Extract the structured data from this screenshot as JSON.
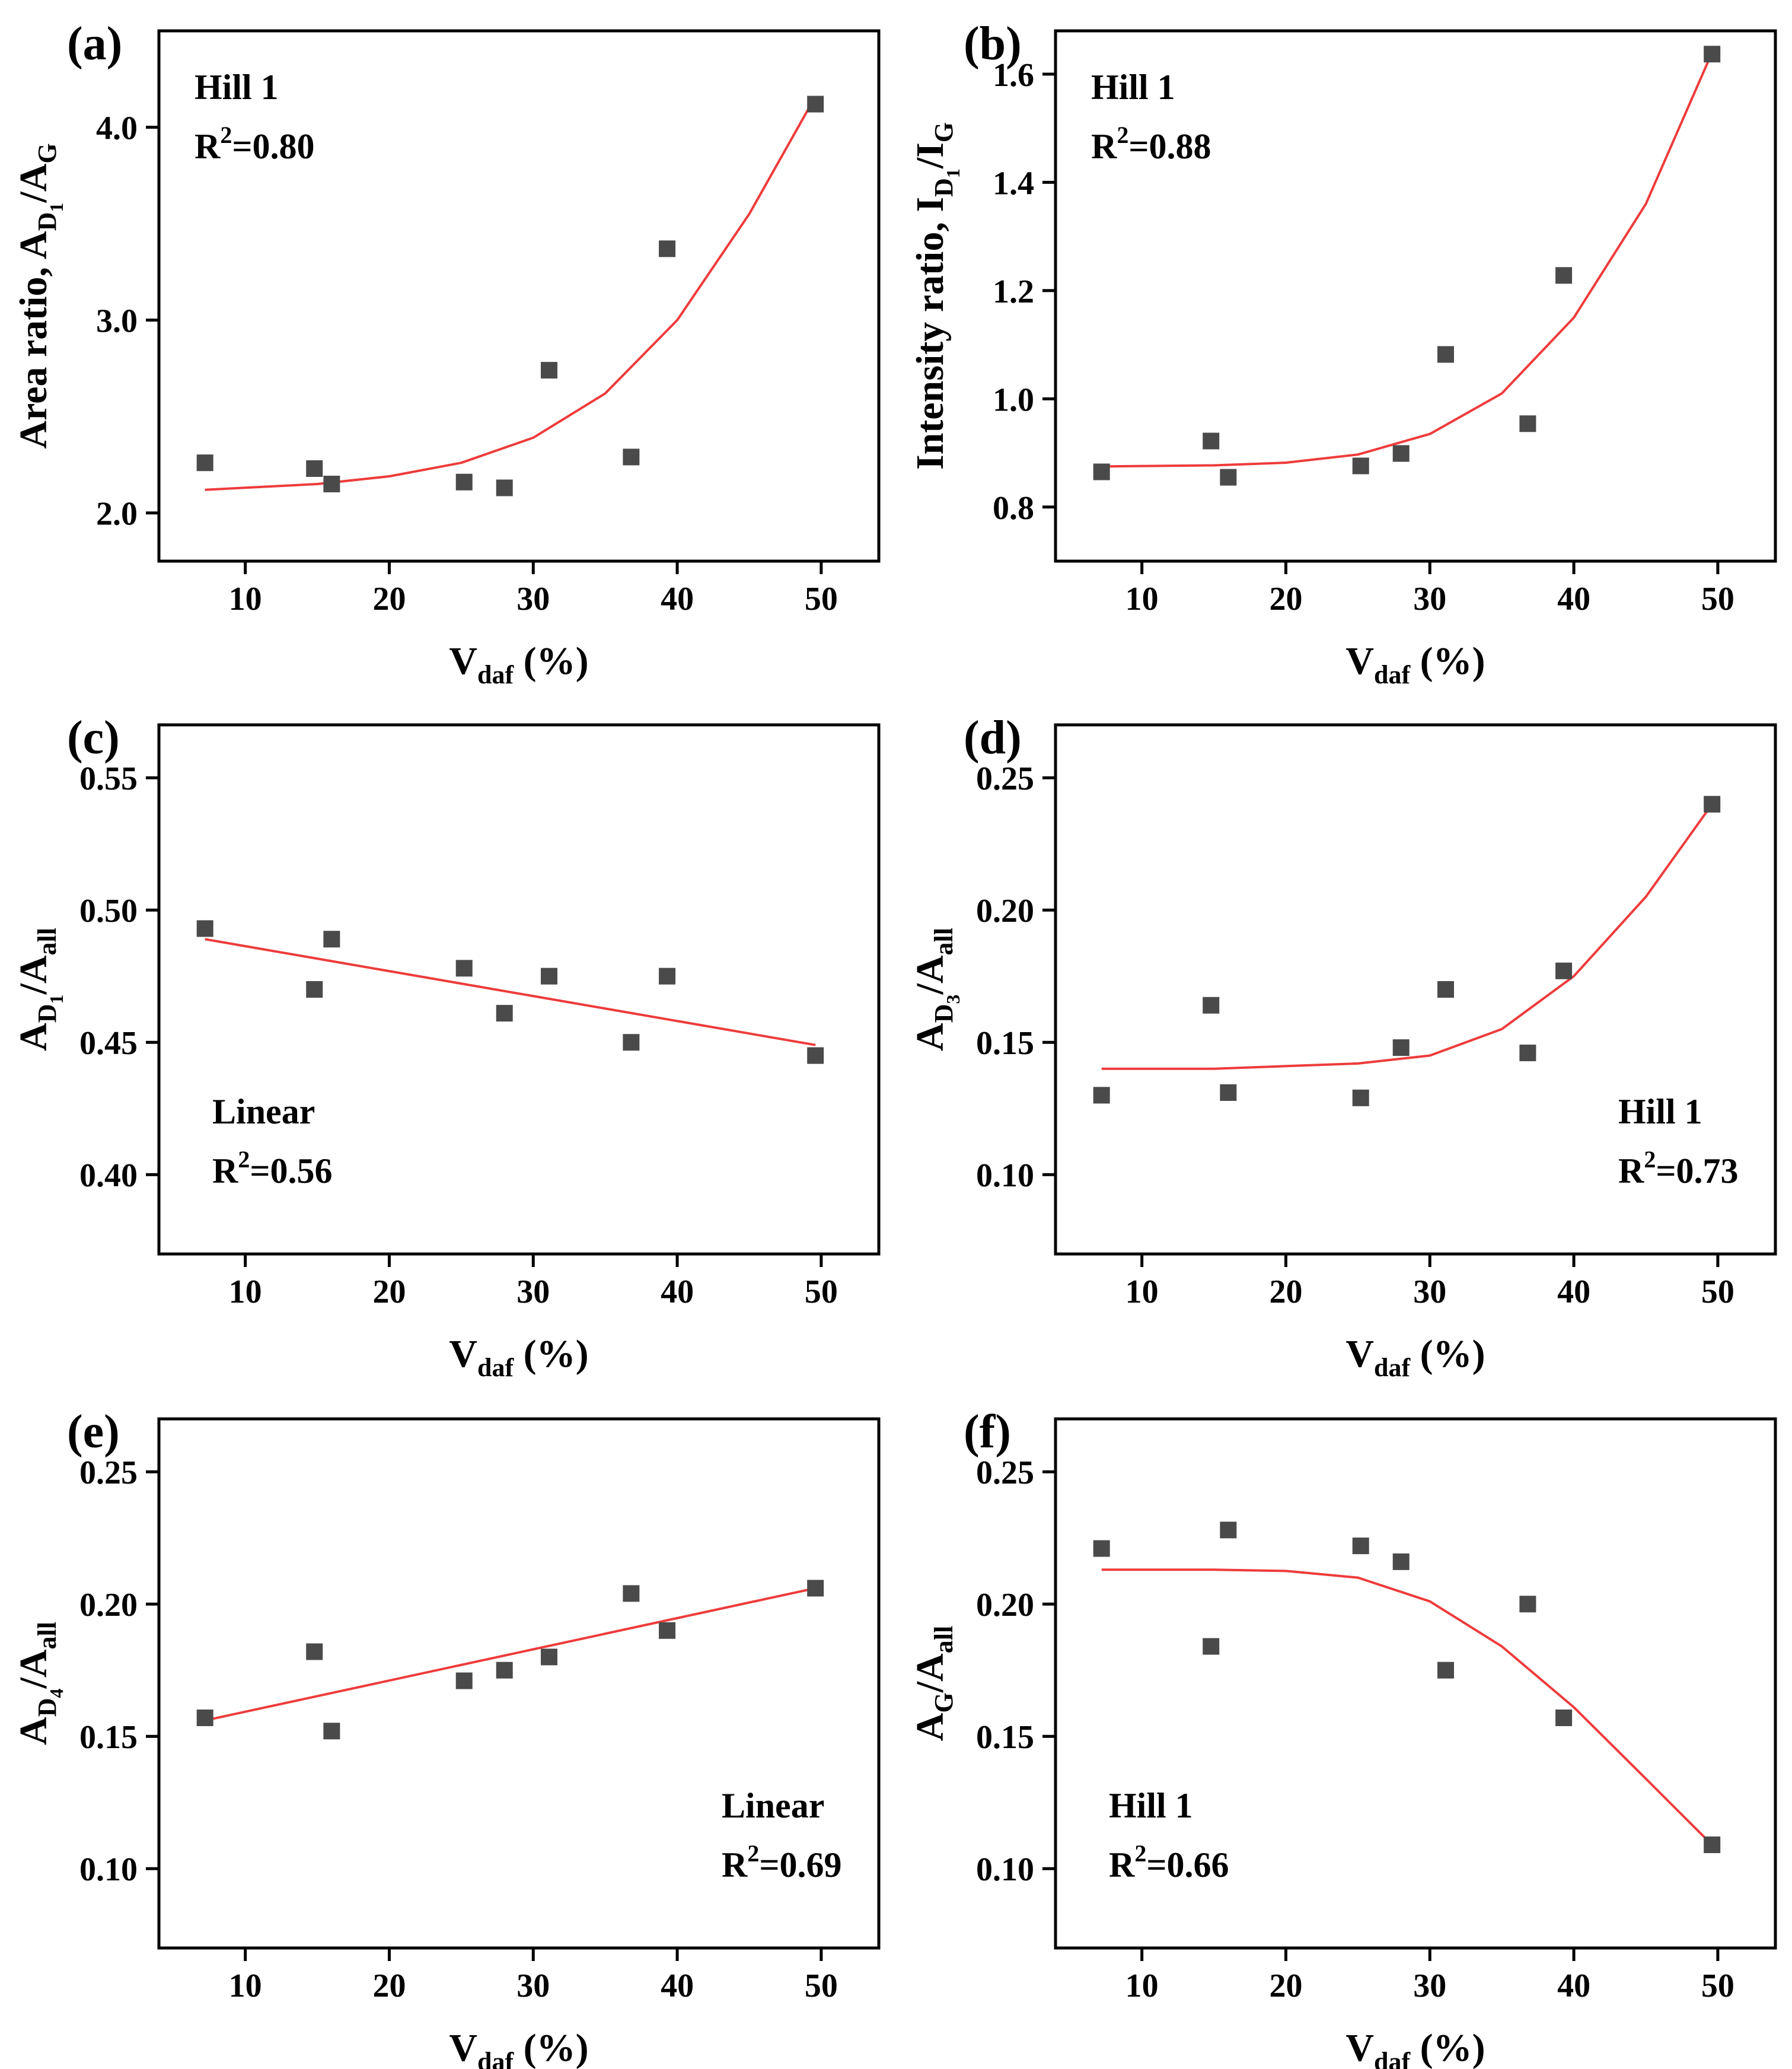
{
  "chart_data": [
    {
      "panel": "(a)",
      "type": "scatter",
      "xlabel": "V",
      "xlabel_sub": "daf",
      "xlabel_rest": " (%)",
      "ylabel": "Area ratio, A",
      "ylabel_sub1": "D",
      "ylabel_sub2": "1",
      "ylabel_rest": "/A",
      "ylabel_sub3": "G",
      "xlim": [
        4,
        54
      ],
      "ylim": [
        1.75,
        4.5
      ],
      "xticks": [
        10,
        20,
        30,
        40,
        50
      ],
      "yticks": [
        2.0,
        3.0,
        4.0
      ],
      "ytick_labels": [
        "2.0",
        "3.0",
        "4.0"
      ],
      "fit_model": "Hill 1",
      "r2_text": "=0.80",
      "annotation_pos": "top-left",
      "x": [
        7.2,
        14.8,
        16.0,
        25.2,
        28.0,
        31.1,
        36.8,
        39.3,
        49.6
      ],
      "y": [
        2.26,
        2.23,
        2.15,
        2.16,
        2.13,
        2.74,
        2.29,
        3.37,
        4.12
      ],
      "fit": [
        [
          7.2,
          2.12
        ],
        [
          15,
          2.15
        ],
        [
          20,
          2.19
        ],
        [
          25,
          2.26
        ],
        [
          30,
          2.39
        ],
        [
          35,
          2.62
        ],
        [
          40,
          3.0
        ],
        [
          45,
          3.55
        ],
        [
          49.6,
          4.16
        ]
      ]
    },
    {
      "panel": "(b)",
      "type": "scatter",
      "xlabel": "V",
      "xlabel_sub": "daf",
      "xlabel_rest": " (%)",
      "ylabel": "Intensity ratio, I",
      "ylabel_sub1": "D",
      "ylabel_sub2": "1",
      "ylabel_rest": "/I",
      "ylabel_sub3": "G",
      "xlim": [
        4,
        54
      ],
      "ylim": [
        0.7,
        1.68
      ],
      "xticks": [
        10,
        20,
        30,
        40,
        50
      ],
      "yticks": [
        0.8,
        1.0,
        1.2,
        1.4,
        1.6
      ],
      "ytick_labels": [
        "0.8",
        "1.0",
        "1.2",
        "1.4",
        "1.6"
      ],
      "fit_model": "Hill 1",
      "r2_text": "=0.88",
      "annotation_pos": "top-left",
      "x": [
        7.2,
        14.8,
        16.0,
        25.2,
        28.0,
        31.1,
        36.8,
        39.3,
        49.6
      ],
      "y": [
        0.865,
        0.922,
        0.855,
        0.876,
        0.899,
        1.082,
        0.954,
        1.228,
        1.637
      ],
      "fit": [
        [
          7.2,
          0.875
        ],
        [
          15,
          0.877
        ],
        [
          20,
          0.882
        ],
        [
          25,
          0.897
        ],
        [
          30,
          0.935
        ],
        [
          35,
          1.01
        ],
        [
          40,
          1.15
        ],
        [
          45,
          1.36
        ],
        [
          49.6,
          1.64
        ]
      ]
    },
    {
      "panel": "(c)",
      "type": "scatter",
      "xlabel": "V",
      "xlabel_sub": "daf",
      "xlabel_rest": " (%)",
      "ylabel": "A",
      "ylabel_sub1": "D",
      "ylabel_sub2": "1",
      "ylabel_rest": "/A",
      "ylabel_sub3": "all",
      "xlim": [
        4,
        54
      ],
      "ylim": [
        0.37,
        0.57
      ],
      "xticks": [
        10,
        20,
        30,
        40,
        50
      ],
      "yticks": [
        0.4,
        0.45,
        0.5,
        0.55
      ],
      "ytick_labels": [
        "0.40",
        "0.45",
        "0.50",
        "0.55"
      ],
      "fit_model": "Linear",
      "r2_text": "=0.56",
      "annotation_pos": "bottom-left",
      "x": [
        7.2,
        14.8,
        16.0,
        25.2,
        28.0,
        31.1,
        36.8,
        39.3,
        49.6
      ],
      "y": [
        0.493,
        0.47,
        0.489,
        0.478,
        0.461,
        0.475,
        0.45,
        0.475,
        0.445
      ],
      "fit": [
        [
          7.2,
          0.489
        ],
        [
          49.6,
          0.449
        ]
      ]
    },
    {
      "panel": "(d)",
      "type": "scatter",
      "xlabel": "V",
      "xlabel_sub": "daf",
      "xlabel_rest": " (%)",
      "ylabel": "A",
      "ylabel_sub1": "D",
      "ylabel_sub2": "3",
      "ylabel_rest": "/A",
      "ylabel_sub3": "all",
      "xlim": [
        4,
        54
      ],
      "ylim": [
        0.07,
        0.27
      ],
      "xticks": [
        10,
        20,
        30,
        40,
        50
      ],
      "yticks": [
        0.1,
        0.15,
        0.2,
        0.25
      ],
      "ytick_labels": [
        "0.10",
        "0.15",
        "0.20",
        "0.25"
      ],
      "fit_model": "Hill 1",
      "r2_text": "=0.73",
      "annotation_pos": "bottom-right",
      "x": [
        7.2,
        14.8,
        16.0,
        25.2,
        28.0,
        31.1,
        36.8,
        39.3,
        49.6
      ],
      "y": [
        0.13,
        0.164,
        0.131,
        0.129,
        0.148,
        0.17,
        0.146,
        0.177,
        0.24
      ],
      "fit": [
        [
          7.2,
          0.14
        ],
        [
          15,
          0.14
        ],
        [
          20,
          0.141
        ],
        [
          25,
          0.142
        ],
        [
          30,
          0.145
        ],
        [
          35,
          0.155
        ],
        [
          40,
          0.175
        ],
        [
          45,
          0.205
        ],
        [
          49.6,
          0.24
        ]
      ]
    },
    {
      "panel": "(e)",
      "type": "scatter",
      "xlabel": "V",
      "xlabel_sub": "daf",
      "xlabel_rest": " (%)",
      "ylabel": "A",
      "ylabel_sub1": "D",
      "ylabel_sub2": "4",
      "ylabel_rest": "/A",
      "ylabel_sub3": "all",
      "xlim": [
        4,
        54
      ],
      "ylim": [
        0.07,
        0.27
      ],
      "xticks": [
        10,
        20,
        30,
        40,
        50
      ],
      "yticks": [
        0.1,
        0.15,
        0.2,
        0.25
      ],
      "ytick_labels": [
        "0.10",
        "0.15",
        "0.20",
        "0.25"
      ],
      "fit_model": "Linear",
      "r2_text": "=0.69",
      "annotation_pos": "bottom-right",
      "x": [
        7.2,
        14.8,
        16.0,
        25.2,
        28.0,
        31.1,
        36.8,
        39.3,
        49.6
      ],
      "y": [
        0.157,
        0.182,
        0.152,
        0.171,
        0.175,
        0.18,
        0.204,
        0.19,
        0.206
      ],
      "fit": [
        [
          7.2,
          0.156
        ],
        [
          49.6,
          0.206
        ]
      ]
    },
    {
      "panel": "(f)",
      "type": "scatter",
      "xlabel": "V",
      "xlabel_sub": "daf",
      "xlabel_rest": " (%)",
      "ylabel": "A",
      "ylabel_sub1": "G",
      "ylabel_sub2": "",
      "ylabel_rest": "/A",
      "ylabel_sub3": "all",
      "xlim": [
        4,
        54
      ],
      "ylim": [
        0.07,
        0.27
      ],
      "xticks": [
        10,
        20,
        30,
        40,
        50
      ],
      "yticks": [
        0.1,
        0.15,
        0.2,
        0.25
      ],
      "ytick_labels": [
        "0.10",
        "0.15",
        "0.20",
        "0.25"
      ],
      "fit_model": "Hill 1",
      "r2_text": "=0.66",
      "annotation_pos": "bottom-left",
      "x": [
        7.2,
        14.8,
        16.0,
        25.2,
        28.0,
        31.1,
        36.8,
        39.3,
        49.6
      ],
      "y": [
        0.221,
        0.184,
        0.228,
        0.222,
        0.216,
        0.175,
        0.2,
        0.157,
        0.109
      ],
      "fit": [
        [
          7.2,
          0.213
        ],
        [
          15,
          0.213
        ],
        [
          20,
          0.2125
        ],
        [
          25,
          0.21
        ],
        [
          30,
          0.201
        ],
        [
          35,
          0.184
        ],
        [
          40,
          0.161
        ],
        [
          45,
          0.134
        ],
        [
          49.6,
          0.109
        ]
      ]
    }
  ],
  "style": {
    "marker_color": "#4a4a4a",
    "fit_color": "#ee3b3b",
    "axis_color": "#000000"
  }
}
